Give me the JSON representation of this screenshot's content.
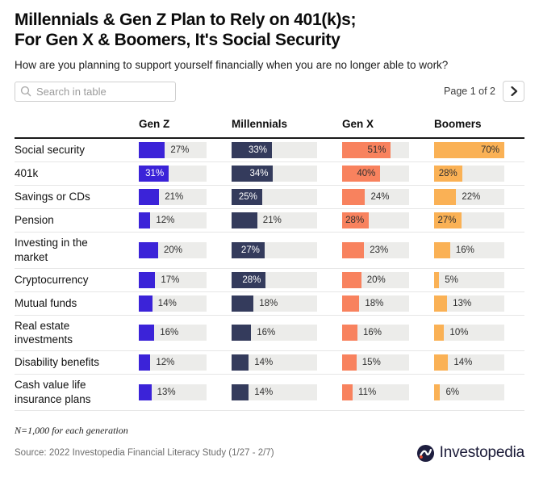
{
  "title": {
    "line1": "Millennials & Gen Z Plan to Rely on 401(k)s;",
    "line2": "For Gen X & Boomers, It's Social Security"
  },
  "subtitle": "How are you planning to support yourself financially when you are no longer able to work?",
  "controls": {
    "search_placeholder": "Search in table",
    "page_label": "Page 1 of 2"
  },
  "chart_data": {
    "type": "bar",
    "orientation": "horizontal",
    "title": "Millennials & Gen Z Plan to Rely on 401(k)s; For Gen X & Boomers, It's Social Security",
    "subtitle": "How are you planning to support yourself financially when you are no longer able to work?",
    "unit": "%",
    "max_scale": 70,
    "categories": [
      "Social security",
      "401k",
      "Savings or CDs",
      "Pension",
      "Investing in the market",
      "Cryptocurrency",
      "Mutual funds",
      "Real estate investments",
      "Disability benefits",
      "Cash value life insurance plans"
    ],
    "series": [
      {
        "name": "Gen Z",
        "color": "#3b23d8",
        "label_color_inside": "#ffffff",
        "values": [
          27,
          31,
          21,
          12,
          20,
          17,
          14,
          16,
          12,
          13
        ]
      },
      {
        "name": "Millennials",
        "color": "#343b5c",
        "label_color_inside": "#ffffff",
        "values": [
          33,
          34,
          25,
          21,
          27,
          28,
          18,
          16,
          14,
          14
        ]
      },
      {
        "name": "Gen X",
        "color": "#f8825e",
        "label_color_inside": "#2f2f2f",
        "values": [
          51,
          40,
          24,
          28,
          23,
          20,
          18,
          16,
          15,
          11
        ]
      },
      {
        "name": "Boomers",
        "color": "#fab155",
        "label_color_inside": "#2f2f2f",
        "values": [
          70,
          28,
          22,
          27,
          16,
          5,
          13,
          10,
          14,
          6
        ]
      }
    ]
  },
  "footer": {
    "note": "N=1,000 for each generation",
    "source": "Source: 2022 Investopedia Financial Literacy Study (1/27 - 2/7)",
    "logo_text": "Investopedia"
  },
  "colors": {
    "track": "#ececea",
    "header_rule": "#1a1a1a",
    "row_divider": "#e6e6e6",
    "logo_navy": "#1b1b38",
    "logo_dot_red": "#e0452c"
  }
}
